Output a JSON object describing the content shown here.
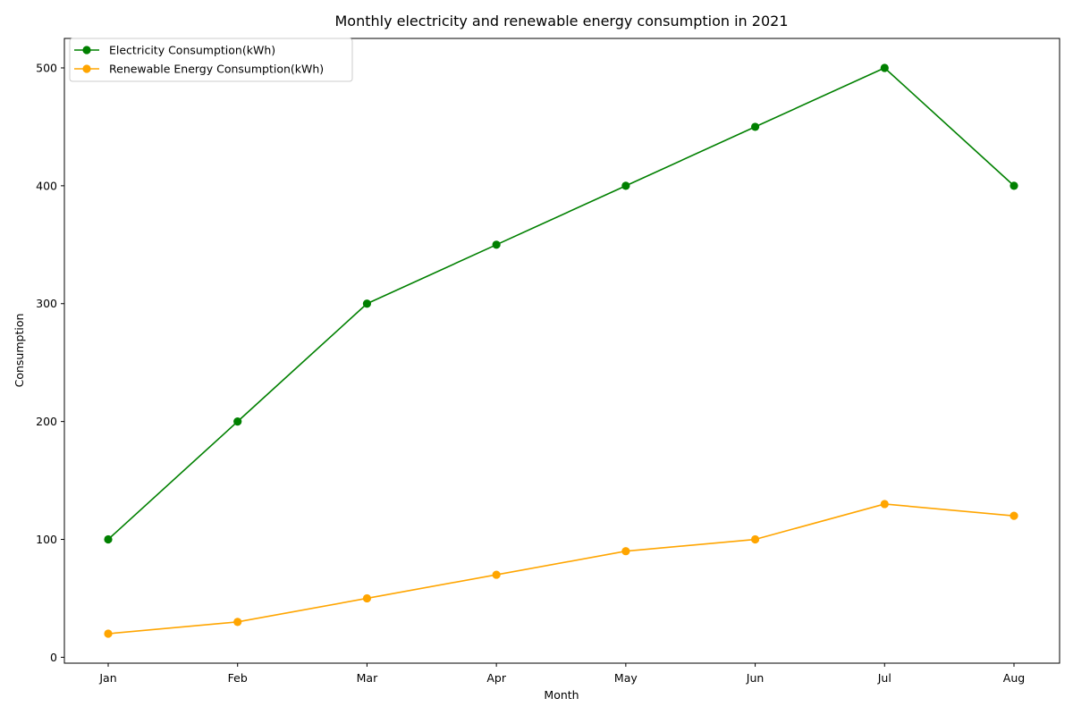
{
  "chart_data": {
    "type": "line",
    "title": "Monthly electricity and renewable energy consumption in 2021",
    "xlabel": "Month",
    "ylabel": "Consumption",
    "categories": [
      "Jan",
      "Feb",
      "Mar",
      "Apr",
      "May",
      "Jun",
      "Jul",
      "Aug"
    ],
    "ylim": [
      -5,
      525
    ],
    "yticks": [
      0,
      100,
      200,
      300,
      400,
      500
    ],
    "grid": false,
    "legend_position": "upper left",
    "series": [
      {
        "name": "Electricity Consumption(kWh)",
        "color": "#008000",
        "marker": "circle",
        "values": [
          100,
          200,
          300,
          350,
          400,
          450,
          500,
          400
        ]
      },
      {
        "name": "Renewable Energy Consumption(kWh)",
        "color": "#ffa500",
        "marker": "circle",
        "values": [
          20,
          30,
          50,
          70,
          90,
          100,
          130,
          120
        ]
      }
    ]
  }
}
